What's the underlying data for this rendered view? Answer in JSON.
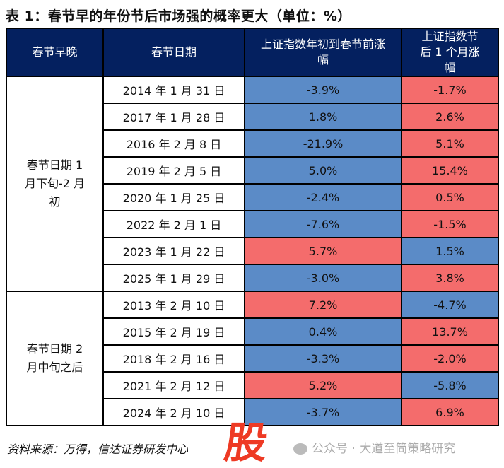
{
  "title": "表 1：春节早的年份节后市场强的概率更大（单位：%）",
  "headers": [
    "春节早晚",
    "春节日期",
    "上证指数年初到春节前涨幅",
    "上证指数节后 1 个月涨幅"
  ],
  "groups": [
    {
      "label": "春节日期 1 月下旬-2 月初",
      "rows": [
        {
          "date": "2014 年 1 月 31 日",
          "pre": "-3.9%",
          "post": "-1.7%",
          "pre_color": "blue",
          "post_color": "red"
        },
        {
          "date": "2017 年 1 月 28 日",
          "pre": "1.8%",
          "post": "2.6%",
          "pre_color": "blue",
          "post_color": "red"
        },
        {
          "date": "2016 年 2 月 8 日",
          "pre": "-21.9%",
          "post": "5.1%",
          "pre_color": "blue",
          "post_color": "red"
        },
        {
          "date": "2019 年 2 月 5 日",
          "pre": "5.0%",
          "post": "15.4%",
          "pre_color": "blue",
          "post_color": "red"
        },
        {
          "date": "2020 年 1 月 25 日",
          "pre": "-2.4%",
          "post": "0.5%",
          "pre_color": "blue",
          "post_color": "red"
        },
        {
          "date": "2022 年 2 月 1 日",
          "pre": "-7.6%",
          "post": "-1.5%",
          "pre_color": "blue",
          "post_color": "red"
        },
        {
          "date": "2023 年 1 月 22 日",
          "pre": "5.7%",
          "post": "1.5%",
          "pre_color": "red",
          "post_color": "blue"
        },
        {
          "date": "2025 年 1 月 29 日",
          "pre": "-3.0%",
          "post": "3.8%",
          "pre_color": "blue",
          "post_color": "red"
        }
      ]
    },
    {
      "label": "春节日期 2 月中旬之后",
      "rows": [
        {
          "date": "2013 年 2 月 10 日",
          "pre": "7.2%",
          "post": "-4.7%",
          "pre_color": "red",
          "post_color": "blue"
        },
        {
          "date": "2015 年 2 月 19 日",
          "pre": "0.4%",
          "post": "13.7%",
          "pre_color": "blue",
          "post_color": "red"
        },
        {
          "date": "2018 年 2 月 16 日",
          "pre": "-3.3%",
          "post": "-2.0%",
          "pre_color": "blue",
          "post_color": "red"
        },
        {
          "date": "2021 年 2 月 12 日",
          "pre": "5.2%",
          "post": "-5.8%",
          "pre_color": "red",
          "post_color": "blue"
        },
        {
          "date": "2024 年 2 月 10 日",
          "pre": "-3.7%",
          "post": "6.9%",
          "pre_color": "blue",
          "post_color": "red"
        }
      ]
    }
  ],
  "source": "资料来源：万得，信达证券研发中心",
  "watermark": "公众号 · 大道至简策略研究",
  "stamp": "股",
  "colors": {
    "header": "#04205f",
    "blue": "#5b8bc7",
    "red": "#f46c6c"
  }
}
